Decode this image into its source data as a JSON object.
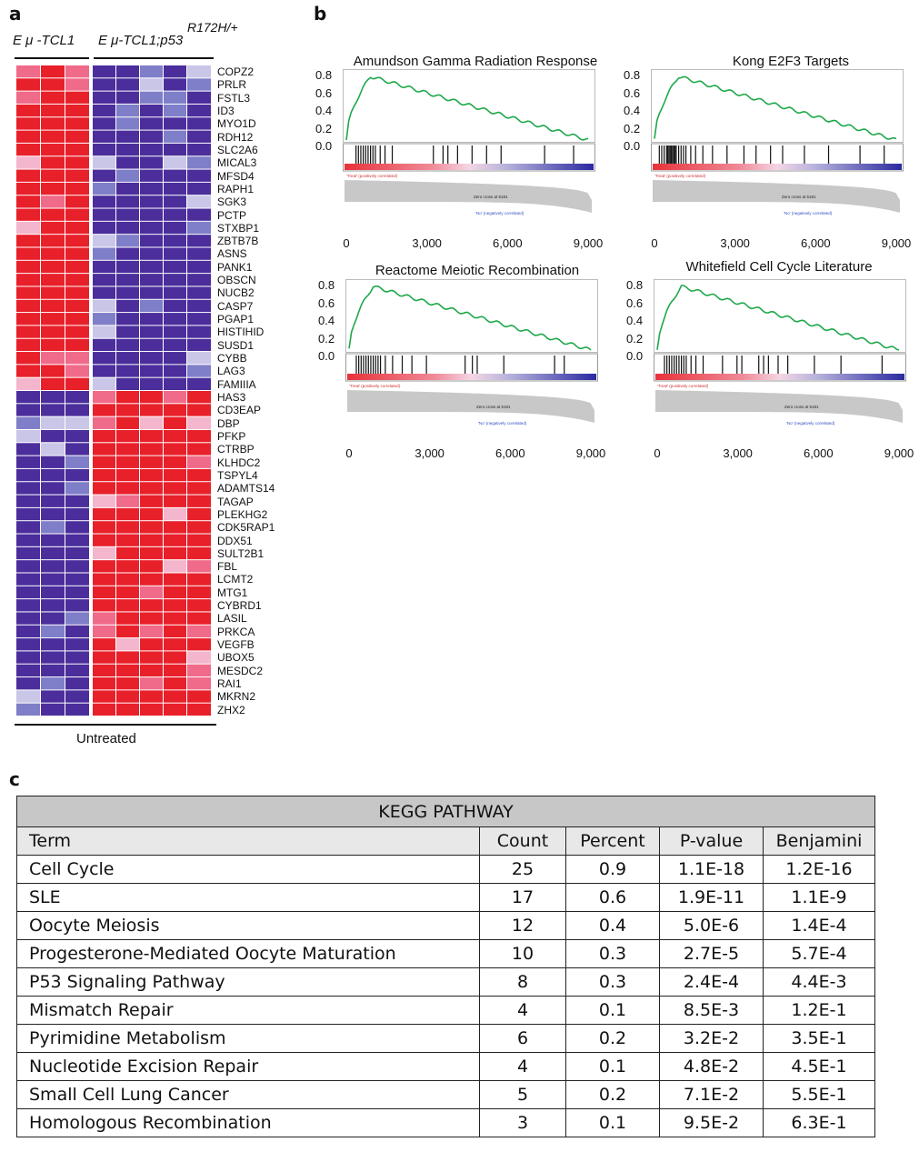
{
  "panels": {
    "a": "a",
    "b": "b",
    "c": "c"
  },
  "heatmap": {
    "group1_label": "E μ -TCL1",
    "group2_label": "E μ-TCL1;p53",
    "group2_superscript": "R172H/+",
    "bottom_label": "Untreated",
    "genes": [
      "COPZ2",
      "PRLR",
      "FSTL3",
      "ID3",
      "MYO1D",
      "RDH12",
      "SLC2A6",
      "MICAL3",
      "MFSD4",
      "RAPH1",
      "SGK3",
      "PCTP",
      "STXBP1",
      "ZBTB7B",
      "ASNS",
      "PANK1",
      "OBSCN",
      "NUCB2",
      "CASP7",
      "PGAP1",
      "HISTIHID",
      "SUSD1",
      "CYBB",
      "LAG3",
      "FAMIIIA",
      "HAS3",
      "CD3EAP",
      "DBP",
      "PFKP",
      "CTRBP",
      "KLHDC2",
      "TSPYL4",
      "ADAMTS14",
      "TAGAP",
      "PLEKHG2",
      "CDK5RAP1",
      "DDX51",
      "SULT2B1",
      "FBL",
      "LCMT2",
      "MTG1",
      "CYBRD1",
      "LASIL",
      "PRKCA",
      "VEGFB",
      "UBOX5",
      "MESDC2",
      "RAI1",
      "MKRN2",
      "ZHX2"
    ],
    "colors": {
      "high": "#e8202a",
      "mid_high": "#f06a8a",
      "light_pink": "#f4b6cc",
      "mid_low": "#7f7ec8",
      "low": "#4b2e9c",
      "lavender": "#c9c6e8"
    }
  },
  "gsea": {
    "plots": [
      {
        "title": "Amundson Gamma Radiation Response"
      },
      {
        "title": "Kong E2F3 Targets"
      },
      {
        "title": "Reactome Meiotic Recombination"
      },
      {
        "title": "Whitefield Cell Cycle Literature"
      }
    ],
    "y_ticks": [
      "0.8",
      "0.6",
      "0.4",
      "0.2",
      "0.0"
    ],
    "x_ticks": [
      "0",
      "3,000",
      "6,000",
      "9,000"
    ],
    "pos_label": "'Treat' (positively correlated)",
    "zero_cross": "Zero cross at 5181",
    "neg_label": "'No' (negatively correlated)",
    "curve_color": "#1fa84a"
  },
  "kegg": {
    "title": "KEGG PATHWAY",
    "columns": [
      "Term",
      "Count",
      "Percent",
      "P-value",
      "Benjamini"
    ],
    "rows": [
      [
        "Cell Cycle",
        "25",
        "0.9",
        "1.1E-18",
        "1.2E-16"
      ],
      [
        "SLE",
        "17",
        "0.6",
        "1.9E-11",
        "1.1E-9"
      ],
      [
        "Oocyte Meiosis",
        "12",
        "0.4",
        "5.0E-6",
        "1.4E-4"
      ],
      [
        "Progesterone-Mediated Oocyte Maturation",
        "10",
        "0.3",
        "2.7E-5",
        "5.7E-4"
      ],
      [
        "P53 Signaling Pathway",
        "8",
        "0.3",
        "2.4E-4",
        "4.4E-3"
      ],
      [
        "Mismatch Repair",
        "4",
        "0.1",
        "8.5E-3",
        "1.2E-1"
      ],
      [
        "Pyrimidine Metabolism",
        "6",
        "0.2",
        "3.2E-2",
        "3.5E-1"
      ],
      [
        "Nucleotide Excision Repair",
        "4",
        "0.1",
        "4.8E-2",
        "4.5E-1"
      ],
      [
        "Small Cell Lung Cancer",
        "5",
        "0.2",
        "7.1E-2",
        "5.5E-1"
      ],
      [
        "Homologous Recombination",
        "3",
        "0.1",
        "9.5E-2",
        "6.3E-1"
      ]
    ]
  }
}
